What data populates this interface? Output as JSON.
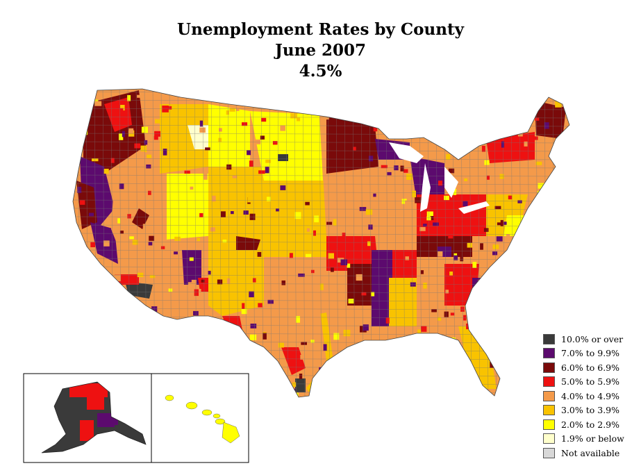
{
  "title": {
    "line1": "Unemployment Rates by County",
    "line2": "June 2007",
    "line3": "4.5%"
  },
  "legend": [
    {
      "label": "10.0% or over",
      "color": "#3a3a3a"
    },
    {
      "label": "7.0% to 9.9%",
      "color": "#5c0a6e"
    },
    {
      "label": "6.0% to 6.9%",
      "color": "#7a0a0a"
    },
    {
      "label": "5.0% to 5.9%",
      "color": "#ee1111"
    },
    {
      "label": "4.0% to 4.9%",
      "color": "#f49a4a"
    },
    {
      "label": "3.0% to 3.9%",
      "color": "#f9c300"
    },
    {
      "label": "2.0% to 2.9%",
      "color": "#ffff00"
    },
    {
      "label": "1.9% or below",
      "color": "#ffffcc"
    },
    {
      "label": "Not available",
      "color": "#d8d8d8"
    }
  ],
  "colors": {
    "border": "#777777",
    "background": "#ffffff"
  }
}
